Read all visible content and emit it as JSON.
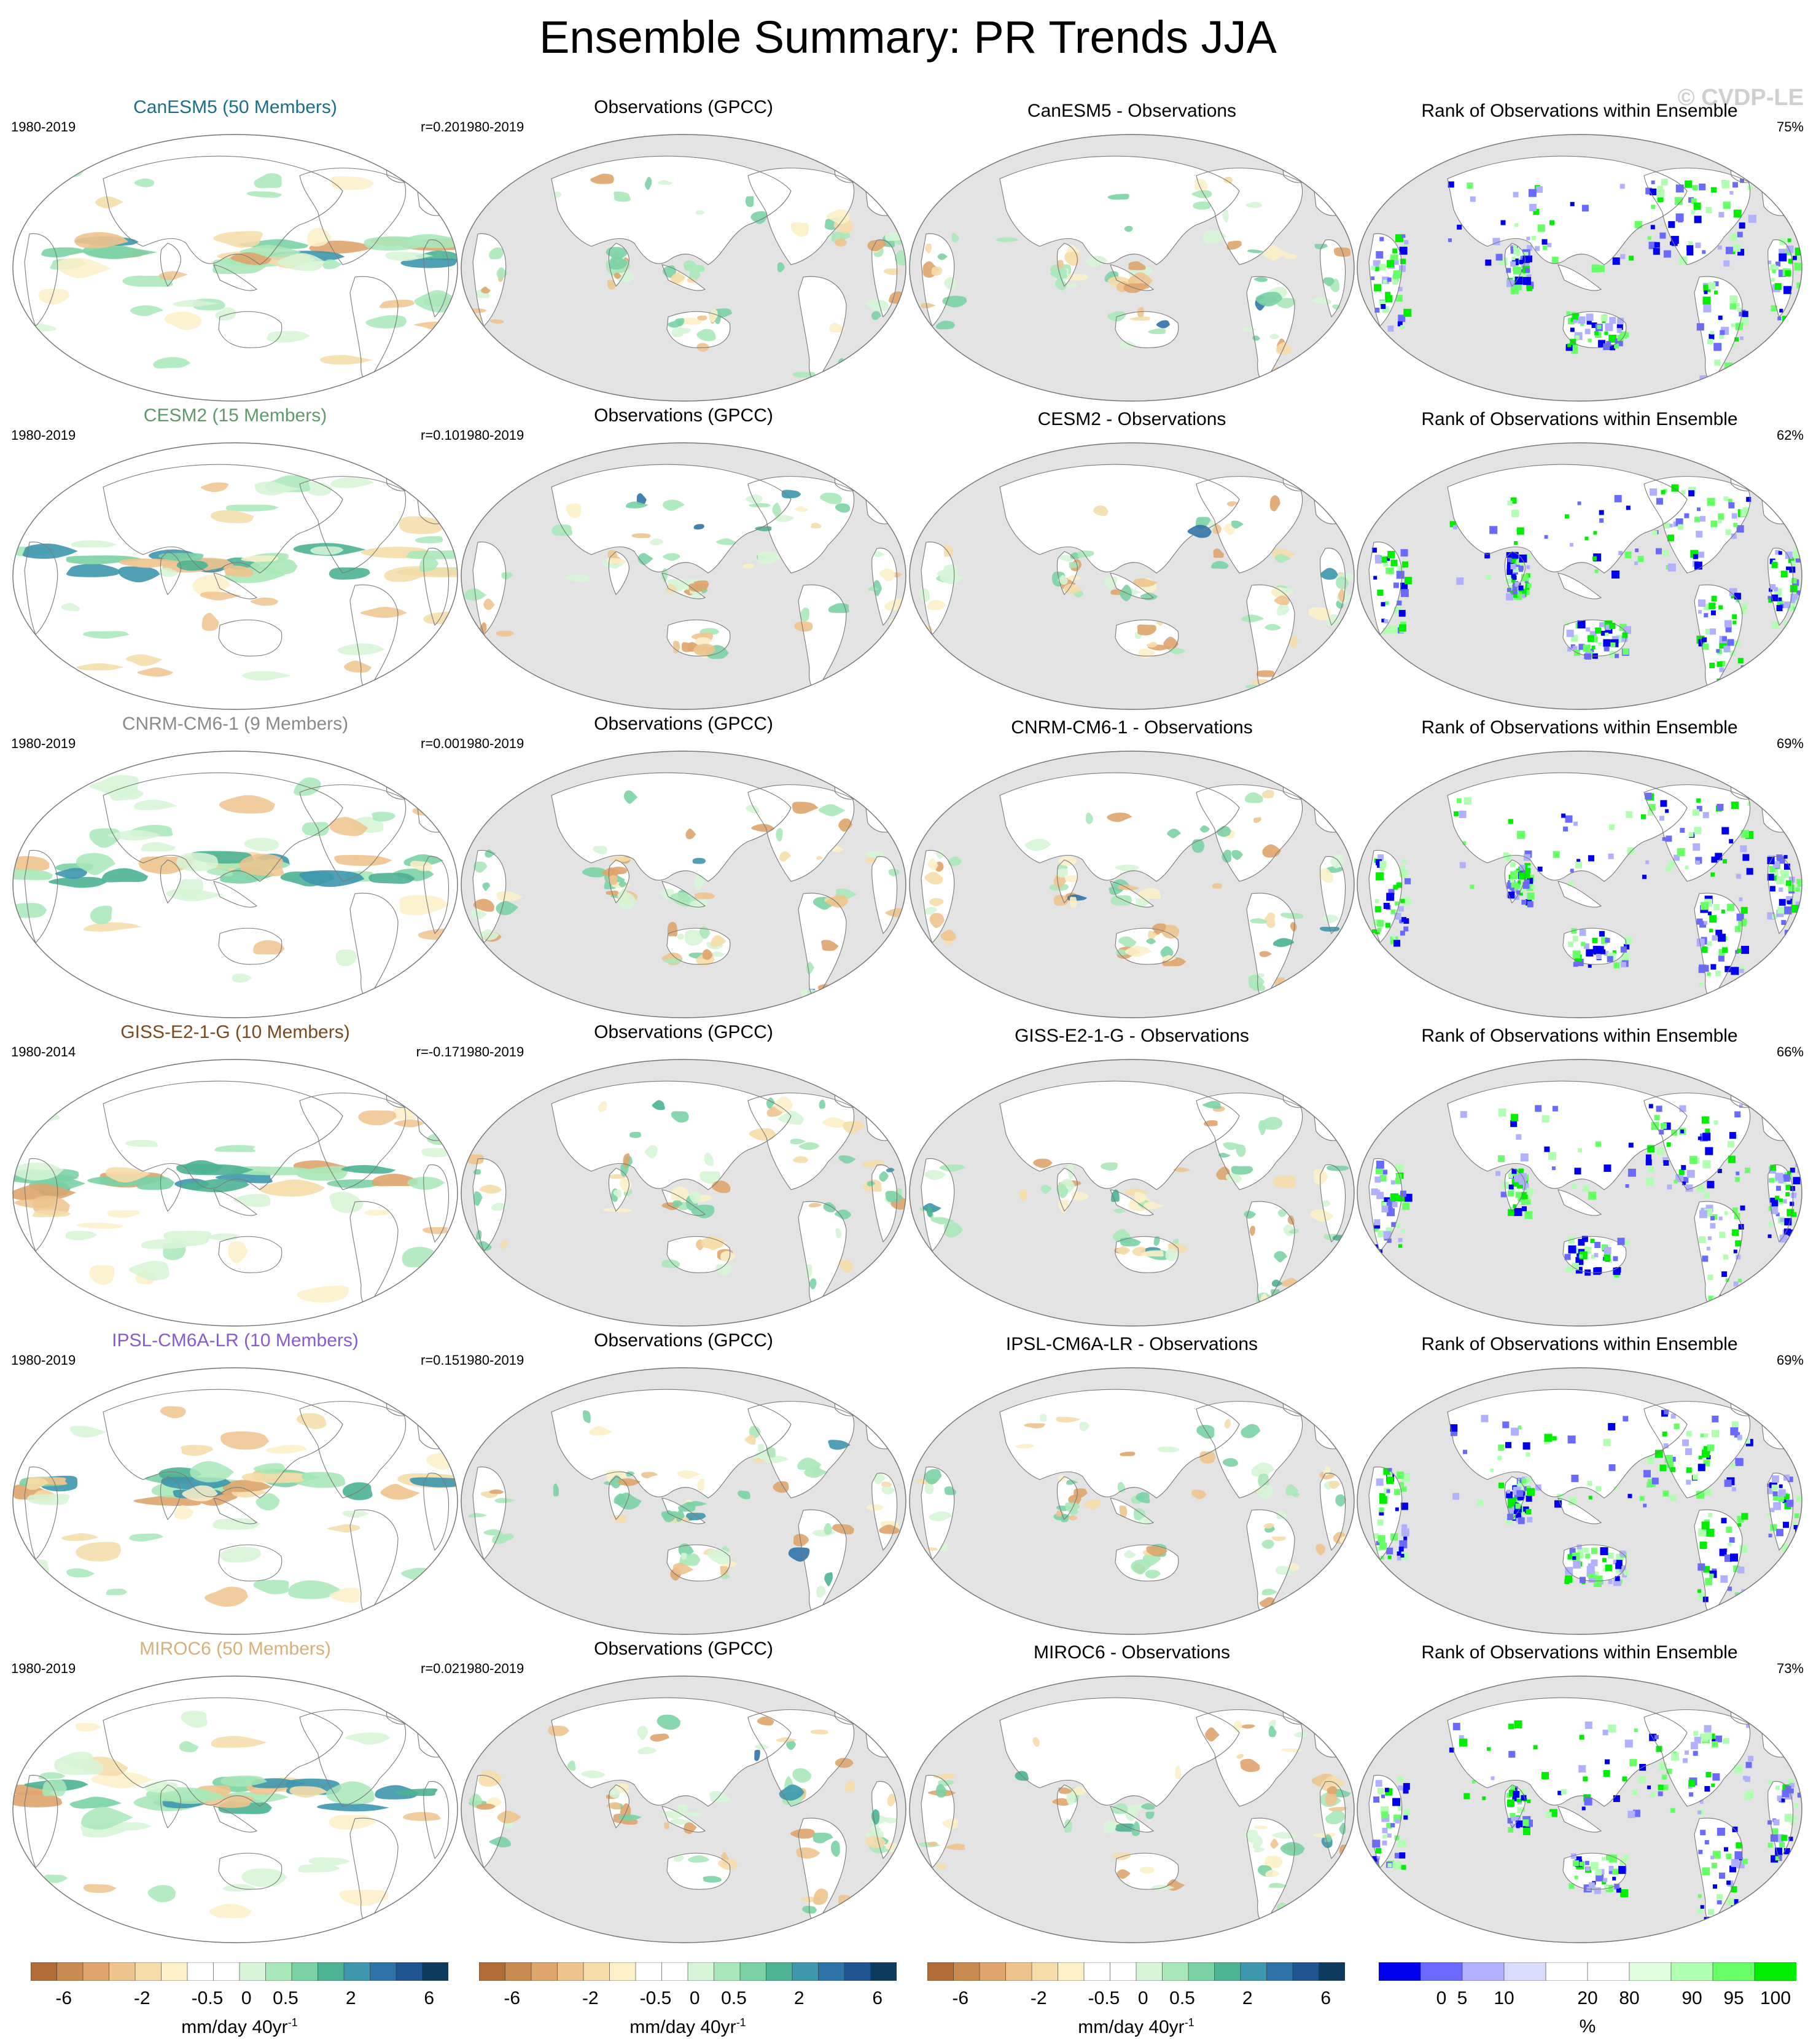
{
  "title": "Ensemble Summary: PR Trends JJA",
  "watermark": "© CVDP-LE",
  "colors": {
    "ocean_obs": "#e3e3e3",
    "ocean_model": "#ffffff",
    "coast": "#7a7a7a",
    "trend_palette": [
      "#b06c34",
      "#c98a4f",
      "#dea56d",
      "#eec38d",
      "#f5dca8",
      "#fbf0c8",
      "#ffffff",
      "#ffffff",
      "#d6f5d6",
      "#a8e8b8",
      "#7ad1a4",
      "#4db394",
      "#3d97ae",
      "#2d73a8",
      "#1f5590",
      "#0d3b5e"
    ],
    "rank_palette": [
      "#0000ee",
      "#6a6aff",
      "#b0b0ff",
      "#dcdcff",
      "#ffffff",
      "#ffffff",
      "#ddffdd",
      "#b0ffb0",
      "#66ff66",
      "#00ee00"
    ]
  },
  "chart_data": [
    {
      "row": 0,
      "col": 0,
      "type": "heatmap",
      "title": "CanESM5 (50 Members)",
      "title_color": "#1b6f8a",
      "period": "1980-2019",
      "stat": "r=0.20",
      "variant": "model"
    },
    {
      "row": 0,
      "col": 1,
      "type": "heatmap",
      "title": "Observations (GPCC)",
      "title_color": "#000000",
      "period": "1980-2019",
      "stat": "",
      "variant": "obs"
    },
    {
      "row": 0,
      "col": 2,
      "type": "heatmap",
      "title": "CanESM5 - Observations",
      "title_color": "#000000",
      "period": "",
      "stat": "",
      "variant": "diff"
    },
    {
      "row": 0,
      "col": 3,
      "type": "heatmap",
      "title": "Rank of Observations within Ensemble",
      "title_color": "#000000",
      "period": "",
      "stat": "75%",
      "variant": "rank"
    },
    {
      "row": 1,
      "col": 0,
      "type": "heatmap",
      "title": "CESM2 (15 Members)",
      "title_color": "#5e9a6a",
      "period": "1980-2019",
      "stat": "r=0.10",
      "variant": "model"
    },
    {
      "row": 1,
      "col": 1,
      "type": "heatmap",
      "title": "Observations (GPCC)",
      "title_color": "#000000",
      "period": "1980-2019",
      "stat": "",
      "variant": "obs"
    },
    {
      "row": 1,
      "col": 2,
      "type": "heatmap",
      "title": "CESM2 - Observations",
      "title_color": "#000000",
      "period": "",
      "stat": "",
      "variant": "diff"
    },
    {
      "row": 1,
      "col": 3,
      "type": "heatmap",
      "title": "Rank of Observations within Ensemble",
      "title_color": "#000000",
      "period": "",
      "stat": "62%",
      "variant": "rank"
    },
    {
      "row": 2,
      "col": 0,
      "type": "heatmap",
      "title": "CNRM-CM6-1 (9 Members)",
      "title_color": "#8a8a8a",
      "period": "1980-2019",
      "stat": "r=0.00",
      "variant": "model"
    },
    {
      "row": 2,
      "col": 1,
      "type": "heatmap",
      "title": "Observations (GPCC)",
      "title_color": "#000000",
      "period": "1980-2019",
      "stat": "",
      "variant": "obs"
    },
    {
      "row": 2,
      "col": 2,
      "type": "heatmap",
      "title": "CNRM-CM6-1 - Observations",
      "title_color": "#000000",
      "period": "",
      "stat": "",
      "variant": "diff"
    },
    {
      "row": 2,
      "col": 3,
      "type": "heatmap",
      "title": "Rank of Observations within Ensemble",
      "title_color": "#000000",
      "period": "",
      "stat": "69%",
      "variant": "rank"
    },
    {
      "row": 3,
      "col": 0,
      "type": "heatmap",
      "title": "GISS-E2-1-G (10 Members)",
      "title_color": "#7a4a1e",
      "period": "1980-2014",
      "stat": "r=-0.17",
      "variant": "model"
    },
    {
      "row": 3,
      "col": 1,
      "type": "heatmap",
      "title": "Observations (GPCC)",
      "title_color": "#000000",
      "period": "1980-2019",
      "stat": "",
      "variant": "obs"
    },
    {
      "row": 3,
      "col": 2,
      "type": "heatmap",
      "title": "GISS-E2-1-G - Observations",
      "title_color": "#000000",
      "period": "",
      "stat": "",
      "variant": "diff"
    },
    {
      "row": 3,
      "col": 3,
      "type": "heatmap",
      "title": "Rank of Observations within Ensemble",
      "title_color": "#000000",
      "period": "",
      "stat": "66%",
      "variant": "rank"
    },
    {
      "row": 4,
      "col": 0,
      "type": "heatmap",
      "title": "IPSL-CM6A-LR (10 Members)",
      "title_color": "#8a5ad0",
      "period": "1980-2019",
      "stat": "r=0.15",
      "variant": "model"
    },
    {
      "row": 4,
      "col": 1,
      "type": "heatmap",
      "title": "Observations (GPCC)",
      "title_color": "#000000",
      "period": "1980-2019",
      "stat": "",
      "variant": "obs"
    },
    {
      "row": 4,
      "col": 2,
      "type": "heatmap",
      "title": "IPSL-CM6A-LR - Observations",
      "title_color": "#000000",
      "period": "",
      "stat": "",
      "variant": "diff"
    },
    {
      "row": 4,
      "col": 3,
      "type": "heatmap",
      "title": "Rank of Observations within Ensemble",
      "title_color": "#000000",
      "period": "",
      "stat": "69%",
      "variant": "rank"
    },
    {
      "row": 5,
      "col": 0,
      "type": "heatmap",
      "title": "MIROC6 (50 Members)",
      "title_color": "#d8b078",
      "period": "1980-2019",
      "stat": "r=0.02",
      "variant": "model"
    },
    {
      "row": 5,
      "col": 1,
      "type": "heatmap",
      "title": "Observations (GPCC)",
      "title_color": "#000000",
      "period": "1980-2019",
      "stat": "",
      "variant": "obs"
    },
    {
      "row": 5,
      "col": 2,
      "type": "heatmap",
      "title": "MIROC6 - Observations",
      "title_color": "#000000",
      "period": "",
      "stat": "",
      "variant": "diff"
    },
    {
      "row": 5,
      "col": 3,
      "type": "heatmap",
      "title": "Rank of Observations within Ensemble",
      "title_color": "#000000",
      "period": "",
      "stat": "73%",
      "variant": "rank"
    }
  ],
  "colorbars": [
    {
      "kind": "trend",
      "ticks": [
        "-6",
        "-2",
        "-0.5",
        "0",
        "0.5",
        "2",
        "6"
      ],
      "units": "mm/day 40yr",
      "units_sup": "-1"
    },
    {
      "kind": "trend",
      "ticks": [
        "-6",
        "-2",
        "-0.5",
        "0",
        "0.5",
        "2",
        "6"
      ],
      "units": "mm/day 40yr",
      "units_sup": "-1"
    },
    {
      "kind": "trend",
      "ticks": [
        "-6",
        "-2",
        "-0.5",
        "0",
        "0.5",
        "2",
        "6"
      ],
      "units": "mm/day 40yr",
      "units_sup": "-1"
    },
    {
      "kind": "rank",
      "ticks": [
        "0",
        "5",
        "10",
        "20",
        "80",
        "90",
        "95",
        "100"
      ],
      "units": "%",
      "units_sup": ""
    }
  ]
}
